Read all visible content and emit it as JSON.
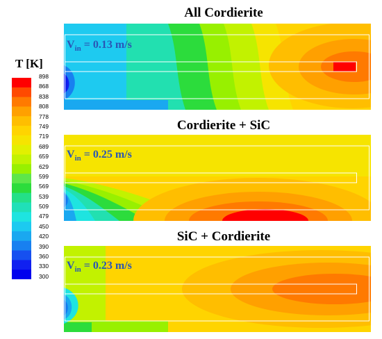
{
  "legend": {
    "title": "T [K]",
    "ticks": [
      "898",
      "868",
      "838",
      "808",
      "778",
      "749",
      "719",
      "689",
      "659",
      "629",
      "599",
      "569",
      "539",
      "509",
      "479",
      "450",
      "420",
      "390",
      "360",
      "330",
      "300"
    ],
    "colors": [
      "#ff0000",
      "#ff4a00",
      "#ff7a00",
      "#ffa000",
      "#ffbe00",
      "#ffd400",
      "#f6e400",
      "#e2f000",
      "#c2f200",
      "#98f000",
      "#5ee64a",
      "#2cdc3c",
      "#24e088",
      "#20e0b8",
      "#1ee4e0",
      "#1ccaf0",
      "#1aa8f0",
      "#1880f0",
      "#1650f0",
      "#1020f0",
      "#0000ee"
    ]
  },
  "panels": [
    {
      "title": "All Cordierite",
      "vin_main": "V",
      "vin_sub": "in",
      "vin_value": " = 0.13 m/s"
    },
    {
      "title": "Cordierite + SiC",
      "vin_main": "V",
      "vin_sub": "in",
      "vin_value": " = 0.25 m/s"
    },
    {
      "title": "SiC + Cordierite",
      "vin_main": "V",
      "vin_sub": "in",
      "vin_value": " = 0.23 m/s"
    }
  ]
}
